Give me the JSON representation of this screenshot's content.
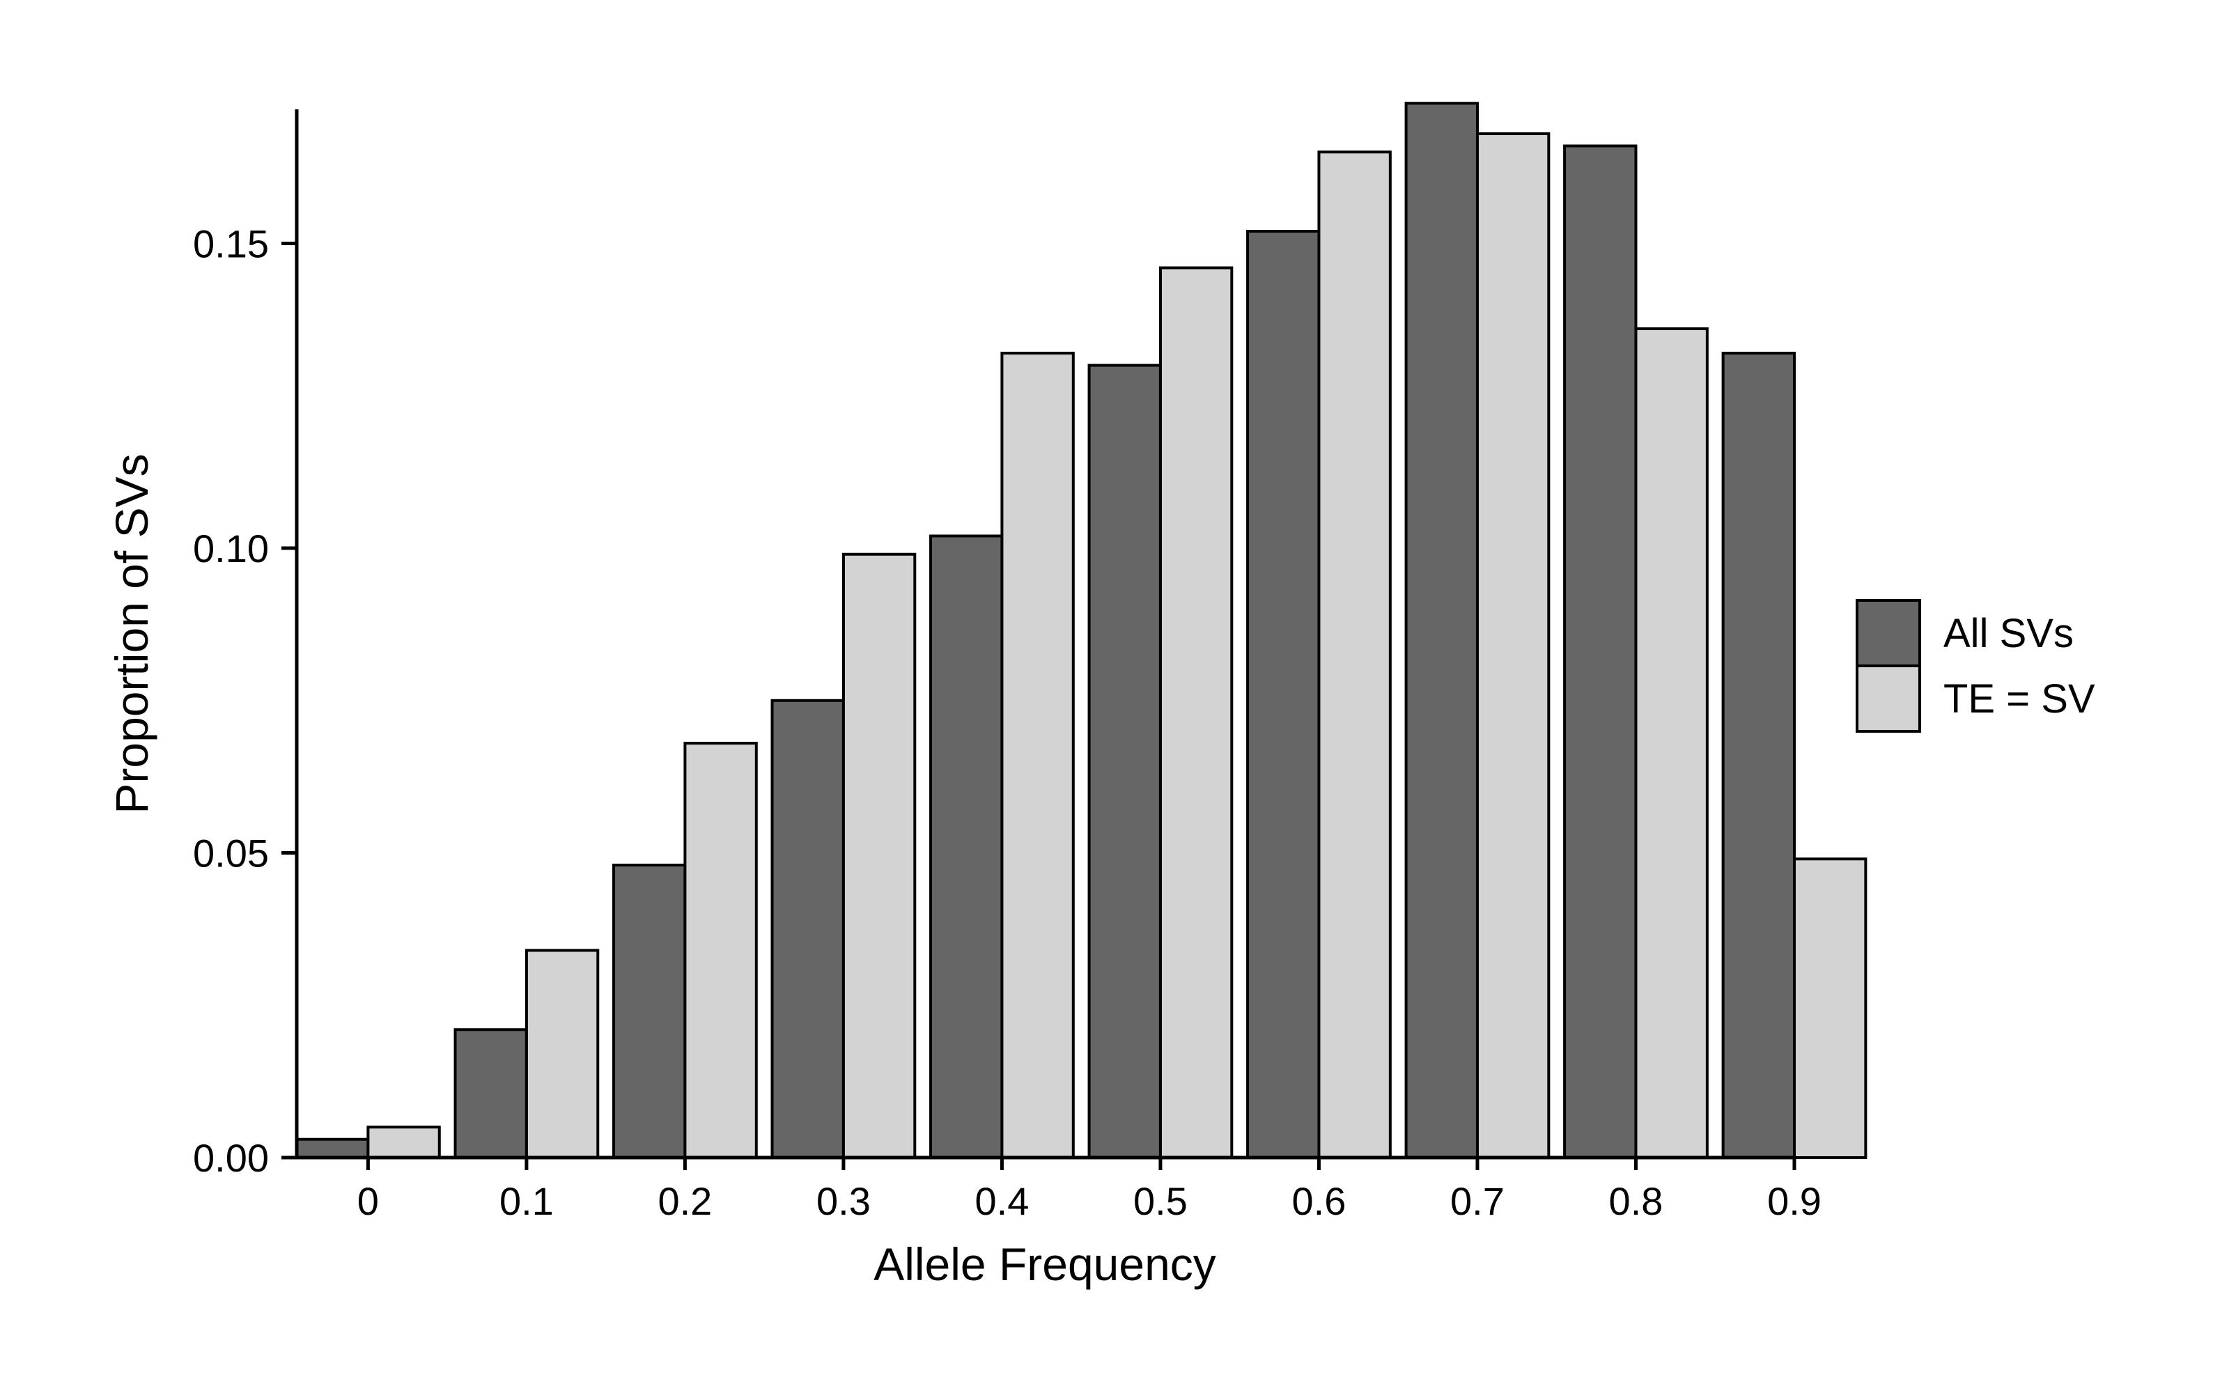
{
  "chart_data": {
    "type": "bar",
    "xlabel": "Allele Frequency",
    "ylabel": "Proportion of SVs",
    "ylim": [
      0,
      0.172
    ],
    "yticks": [
      0.0,
      0.05,
      0.1,
      0.15
    ],
    "ytick_labels": [
      "0.00",
      "0.05",
      "0.10",
      "0.15"
    ],
    "categories": [
      "0",
      "0.1",
      "0.2",
      "0.3",
      "0.4",
      "0.5",
      "0.6",
      "0.7",
      "0.8",
      "0.9"
    ],
    "series": [
      {
        "name": "All SVs",
        "color": "#666666",
        "values": [
          0.003,
          0.021,
          0.048,
          0.075,
          0.102,
          0.13,
          0.152,
          0.173,
          0.166,
          0.132
        ]
      },
      {
        "name": "TE = SV",
        "color": "#d3d3d3",
        "values": [
          0.005,
          0.034,
          0.068,
          0.099,
          0.132,
          0.146,
          0.165,
          0.168,
          0.136,
          0.049
        ]
      }
    ],
    "grid": false,
    "legend_position": "right"
  }
}
